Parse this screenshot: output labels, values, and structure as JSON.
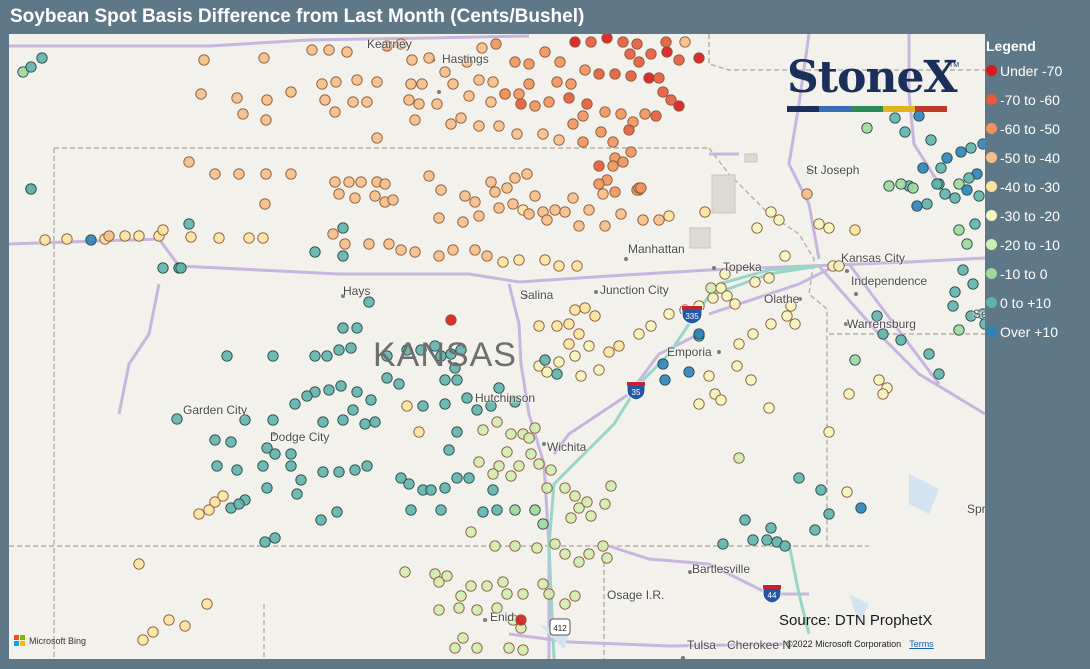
{
  "title": "Soybean Spot Basis Difference from Last Month (Cents/Bushel)",
  "legend": {
    "title": "Legend",
    "items": [
      {
        "label": "Under -70",
        "color": "#d7191c"
      },
      {
        "label": "-70 to -60",
        "color": "#e55b3c"
      },
      {
        "label": "-60 to -50",
        "color": "#f0935c"
      },
      {
        "label": "-50 to -40",
        "color": "#f8be8a"
      },
      {
        "label": "-40 to -30",
        "color": "#fde3a0"
      },
      {
        "label": "-30 to -20",
        "color": "#f5f5bd"
      },
      {
        "label": "-20 to -10",
        "color": "#d1ecb0"
      },
      {
        "label": "-10 to 0",
        "color": "#9fd89b"
      },
      {
        "label": "0 to +10",
        "color": "#5fb3ab"
      },
      {
        "label": "Over +10",
        "color": "#2b83ba"
      }
    ]
  },
  "map": {
    "state_label": "KANSAS",
    "cities": [
      "Kearney",
      "Hastings",
      "St Joseph",
      "Manhattan",
      "Topeka",
      "Kansas City",
      "Independence",
      "Hays",
      "Salina",
      "Junction City",
      "Olathe",
      "Warrensburg",
      "Emporia",
      "Garden City",
      "Dodge City",
      "Hutchinson",
      "Wichita",
      "Bartlesville",
      "Osage I.R.",
      "Enid",
      "Tulsa",
      "Cherokee N",
      "Se",
      "Spr"
    ],
    "road_shields": [
      "335",
      "35",
      "44",
      "412"
    ]
  },
  "logo": {
    "text": "StoneX",
    "tm": "TM",
    "bar_colors": [
      "#1b2f5a",
      "#3a6db5",
      "#2e8b57",
      "#e0b21c",
      "#c0392b"
    ]
  },
  "source": "Source: DTN ProphetX",
  "copyright": "©2022 Microsoft Corporation",
  "terms": "Terms",
  "bing": "Microsoft Bing",
  "bing_colors": [
    "#f25022",
    "#7fba00",
    "#00a4ef",
    "#ffb900"
  ]
}
